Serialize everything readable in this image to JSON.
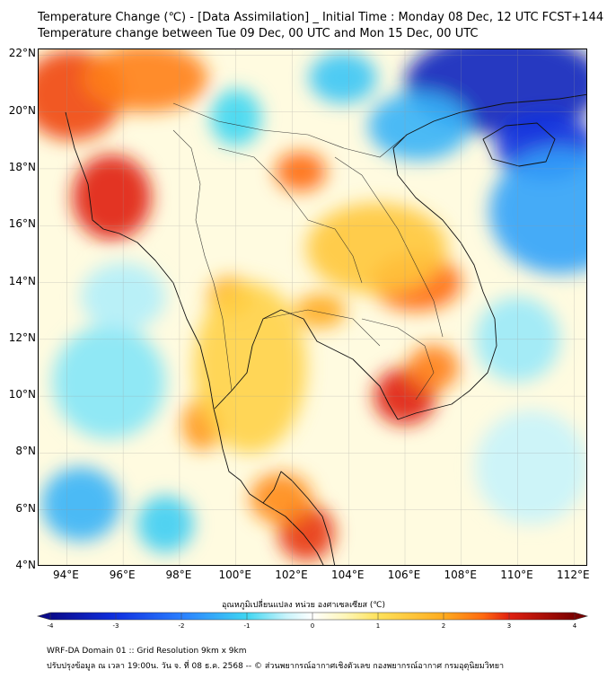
{
  "header": {
    "title_line1": "Temperature Change (℃) - [Data Assimilation] _ Initial Time : Monday 08 Dec, 12 UTC FCST+144",
    "title_line2": "Temperature change between Tue 09 Dec, 00 UTC and Mon 15 Dec, 00 UTC"
  },
  "map": {
    "lon_range": [
      93,
      112.5
    ],
    "lat_range": [
      4,
      22.2
    ],
    "lat_labels": [
      "22°N",
      "20°N",
      "18°N",
      "16°N",
      "14°N",
      "12°N",
      "10°N",
      "8°N",
      "6°N",
      "4°N"
    ],
    "lat_values": [
      22,
      20,
      18,
      16,
      14,
      12,
      10,
      8,
      6,
      4
    ],
    "lon_labels": [
      "94°E",
      "96°E",
      "98°E",
      "100°E",
      "102°E",
      "104°E",
      "106°E",
      "108°E",
      "110°E",
      "112°E"
    ],
    "lon_values": [
      94,
      96,
      98,
      100,
      102,
      104,
      106,
      108,
      110,
      112
    ],
    "gridlines": true,
    "field_blobs": [
      {
        "lon": 94.2,
        "lat": 20.6,
        "value": 2.8,
        "rlon": 1.8,
        "rlat": 1.6
      },
      {
        "lon": 96.8,
        "lat": 21.2,
        "value": 2.4,
        "rlon": 2.2,
        "rlat": 1.2
      },
      {
        "lon": 95.6,
        "lat": 17.0,
        "value": 3.0,
        "rlon": 1.4,
        "rlat": 1.5
      },
      {
        "lon": 102.3,
        "lat": 17.9,
        "value": 2.6,
        "rlon": 0.9,
        "rlat": 0.7
      },
      {
        "lon": 106.4,
        "lat": 14.0,
        "value": 2.6,
        "rlon": 1.6,
        "rlat": 1.0
      },
      {
        "lon": 103.0,
        "lat": 13.0,
        "value": 2.0,
        "rlon": 0.9,
        "rlat": 0.6
      },
      {
        "lon": 106.0,
        "lat": 10.0,
        "value": 3.0,
        "rlon": 1.1,
        "rlat": 1.0
      },
      {
        "lon": 107.0,
        "lat": 11.0,
        "value": 2.4,
        "rlon": 0.9,
        "rlat": 0.8
      },
      {
        "lon": 99.8,
        "lat": 13.5,
        "value": 2.0,
        "rlon": 0.8,
        "rlat": 0.7
      },
      {
        "lon": 98.8,
        "lat": 9.0,
        "value": 2.2,
        "rlon": 0.7,
        "rlat": 0.9
      },
      {
        "lon": 102.5,
        "lat": 5.2,
        "value": 2.9,
        "rlon": 1.0,
        "rlat": 1.0
      },
      {
        "lon": 101.6,
        "lat": 6.4,
        "value": 2.3,
        "rlon": 1.1,
        "rlat": 0.9
      },
      {
        "lon": 105.0,
        "lat": 15.2,
        "value": 1.5,
        "rlon": 2.5,
        "rlat": 1.6
      },
      {
        "lon": 100.5,
        "lat": 11.0,
        "value": 1.3,
        "rlon": 2.0,
        "rlat": 3.0
      },
      {
        "lon": 109.5,
        "lat": 21.0,
        "value": -3.4,
        "rlon": 3.5,
        "rlat": 1.8
      },
      {
        "lon": 111.0,
        "lat": 18.8,
        "value": -3.0,
        "rlon": 1.8,
        "rlat": 1.2
      },
      {
        "lon": 111.5,
        "lat": 16.5,
        "value": -1.6,
        "rlon": 2.5,
        "rlat": 2.2
      },
      {
        "lon": 106.5,
        "lat": 19.5,
        "value": -1.4,
        "rlon": 1.8,
        "rlat": 1.2
      },
      {
        "lon": 103.8,
        "lat": 21.2,
        "value": -1.2,
        "rlon": 1.2,
        "rlat": 0.9
      },
      {
        "lon": 100.0,
        "lat": 19.8,
        "value": -1.0,
        "rlon": 0.9,
        "rlat": 1.0
      },
      {
        "lon": 94.5,
        "lat": 6.2,
        "value": -1.4,
        "rlon": 1.4,
        "rlat": 1.3
      },
      {
        "lon": 97.5,
        "lat": 5.5,
        "value": -1.1,
        "rlon": 1.0,
        "rlat": 1.0
      },
      {
        "lon": 95.5,
        "lat": 10.5,
        "value": -0.7,
        "rlon": 2.0,
        "rlat": 2.0
      },
      {
        "lon": 110.0,
        "lat": 12.0,
        "value": -0.6,
        "rlon": 1.5,
        "rlat": 1.5
      },
      {
        "lon": 110.5,
        "lat": 7.5,
        "value": -0.4,
        "rlon": 2.0,
        "rlat": 2.0
      },
      {
        "lon": 96.0,
        "lat": 13.5,
        "value": -0.5,
        "rlon": 1.5,
        "rlat": 1.2
      }
    ]
  },
  "colorbar": {
    "label": "อุณหภูมิเปลี่ยนแปลง หน่วย องศาเซลเซียส (℃)",
    "tick_labels": [
      "-4",
      "-3",
      "-2",
      "-1",
      "0",
      "1",
      "2",
      "3",
      "4"
    ],
    "tick_values": [
      -4,
      -3,
      -2,
      -1,
      0,
      1,
      2,
      3,
      4
    ],
    "range": [
      -4,
      4
    ],
    "stops": [
      {
        "v": -4,
        "c": "#0a0a8a"
      },
      {
        "v": -3,
        "c": "#1030e0"
      },
      {
        "v": -2,
        "c": "#2a7fff"
      },
      {
        "v": -1,
        "c": "#3fd6f2"
      },
      {
        "v": -0.4,
        "c": "#c8f3fb"
      },
      {
        "v": 0,
        "c": "#ffffff"
      },
      {
        "v": 0.5,
        "c": "#fff6b8"
      },
      {
        "v": 1,
        "c": "#ffe25a"
      },
      {
        "v": 2,
        "c": "#ffab1e"
      },
      {
        "v": 2.6,
        "c": "#ff6a10"
      },
      {
        "v": 3,
        "c": "#e02010"
      },
      {
        "v": 4,
        "c": "#7a0000"
      }
    ]
  },
  "footer": {
    "line1": "WRF-DA Domain 01 :: Grid Resolution 9km x 9km",
    "line2": "ปรับปรุงข้อมูล ณ เวลา 19:00น. วัน จ. ที่ 08 ธ.ค. 2568 -- © ส่วนพยากรณ์อากาศเชิงตัวเลข กองพยากรณ์อากาศ กรมอุตุนิยมวิทยา"
  }
}
